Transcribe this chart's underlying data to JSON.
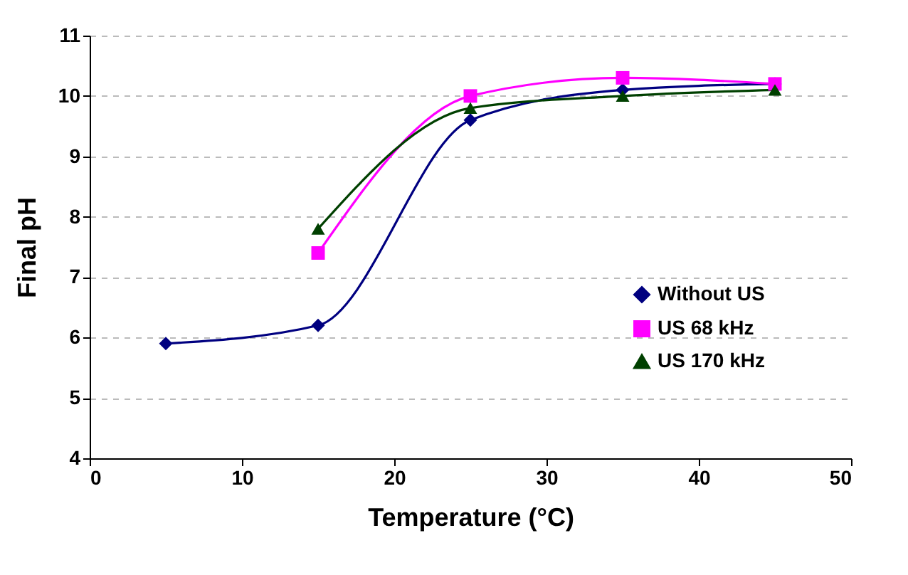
{
  "chart_data": {
    "type": "line",
    "xlabel": "Temperature (°C)",
    "ylabel": "Final pH",
    "xlim": [
      0,
      50
    ],
    "xticks": [
      0,
      10,
      20,
      30,
      40,
      50
    ],
    "ylim": [
      4,
      11
    ],
    "yticks": [
      4,
      5,
      6,
      7,
      8,
      9,
      10,
      11
    ],
    "grid": "y",
    "legend": "bottom right",
    "series": [
      {
        "name": "Without US",
        "color": "#000080",
        "marker": "diamond",
        "x": [
          5,
          15,
          25,
          35,
          45
        ],
        "values": [
          5.9,
          6.2,
          9.6,
          10.1,
          10.2
        ]
      },
      {
        "name": "US 68 kHz",
        "color": "#ff00ff",
        "marker": "square",
        "x": [
          15,
          25,
          35,
          45
        ],
        "values": [
          7.4,
          10.0,
          10.3,
          10.2
        ]
      },
      {
        "name": "US 170 kHz",
        "color": "#004000",
        "marker": "triangle",
        "x": [
          15,
          25,
          35,
          45
        ],
        "values": [
          7.8,
          9.8,
          10.0,
          10.1
        ]
      }
    ]
  }
}
